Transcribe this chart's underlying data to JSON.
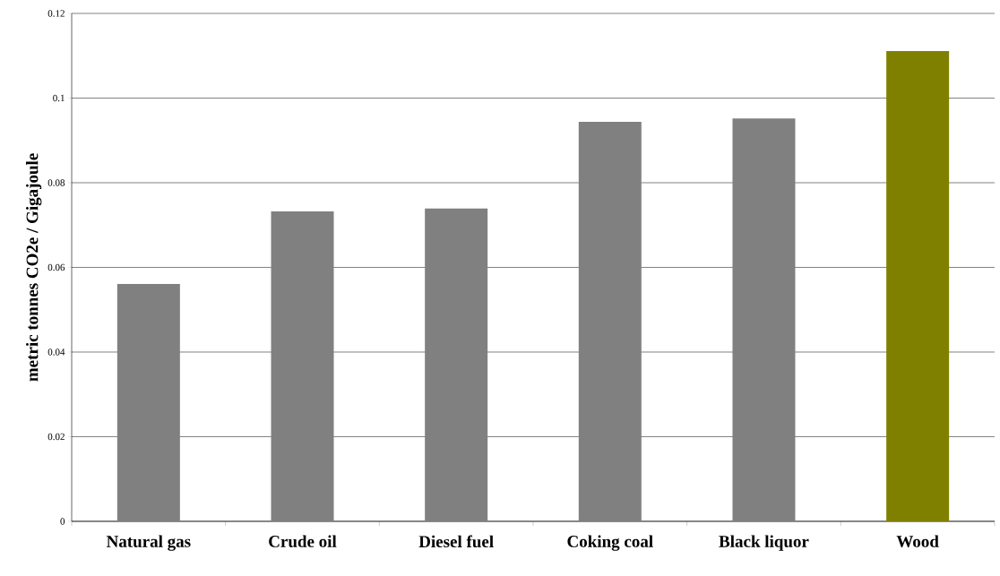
{
  "chart_data": {
    "type": "bar",
    "ylabel": "metric tonnes CO2e / Gigajoule",
    "categories": [
      "Natural gas",
      "Crude oil",
      "Diesel fuel",
      "Coking coal",
      "Black liquor",
      "Wood"
    ],
    "values": [
      0.0561,
      0.0732,
      0.0739,
      0.0944,
      0.0952,
      0.1111
    ],
    "colors": [
      "#808080",
      "#808080",
      "#808080",
      "#808080",
      "#808080",
      "#808000"
    ],
    "ylim": [
      0,
      0.12
    ],
    "yticks": [
      0,
      0.02,
      0.04,
      0.06,
      0.08,
      0.1,
      0.12
    ],
    "grid": "y"
  }
}
